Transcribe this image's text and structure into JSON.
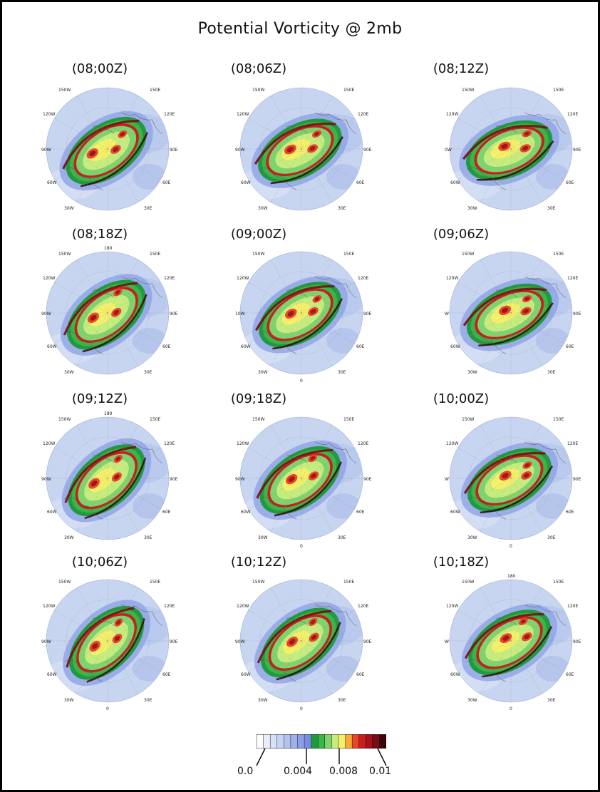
{
  "title": "Potential Vorticity @ 2mb",
  "panels": [
    {
      "label": "(08;00Z)",
      "lons": [
        "150W",
        "150E",
        "120W",
        "120E",
        "90W",
        "90E",
        "60W",
        "60E",
        "30W",
        "30E"
      ]
    },
    {
      "label": "(08;06Z)",
      "lons": [
        "150W",
        "150E",
        "120W",
        "120E",
        "90W",
        "90E",
        "60W",
        "60E",
        "30W",
        "30E"
      ]
    },
    {
      "label": "(08;12Z)",
      "lons": [
        "150W",
        "150E",
        "120W",
        "120E",
        "0W",
        "90E",
        "60W",
        "60E",
        "30W",
        "30E"
      ]
    },
    {
      "label": "(08;18Z)",
      "lons": [
        "150W",
        "150E",
        "120W",
        "120E",
        "90W",
        "90E",
        "60W",
        "60E",
        "30W",
        "30E"
      ],
      "top": "180"
    },
    {
      "label": "(09;00Z)",
      "lons": [
        "150W",
        "150E",
        "120W",
        "120E",
        "10W",
        "90E",
        "60W",
        "60E",
        "30W",
        "30E"
      ],
      "bottom": "0"
    },
    {
      "label": "(09;06Z)",
      "lons": [
        "150W",
        "150E",
        "120W",
        "120E",
        "W",
        "90E",
        "60W",
        "60E",
        "30W",
        "30E"
      ]
    },
    {
      "label": "(09;12Z)",
      "lons": [
        "150W",
        "150E",
        "120W",
        "120E",
        "90W",
        "90E",
        "60W",
        "60E",
        "30W",
        "30E"
      ],
      "top": "180"
    },
    {
      "label": "(09;18Z)",
      "lons": [
        "150W",
        "150E",
        "120W",
        "120E",
        "90W",
        "90E",
        "60W",
        "60E",
        "30W",
        "30E"
      ],
      "bottom": "0"
    },
    {
      "label": "(10;00Z)",
      "lons": [
        "150W",
        "150E",
        "120W",
        "120E",
        "W",
        "90E",
        "60W",
        "60E",
        "30W",
        "30E"
      ],
      "bottom": "0"
    },
    {
      "label": "(10;06Z)",
      "lons": [
        "150W",
        "150E",
        "120W",
        "120E",
        "90W",
        "90E",
        "60W",
        "60E",
        "30W",
        "30E"
      ],
      "bottom": "0"
    },
    {
      "label": "(10;12Z)",
      "lons": [
        "150W",
        "150E",
        "120W",
        "120E",
        "90W",
        "90E",
        "60W",
        "60E",
        "30W",
        "30E"
      ],
      "bottom": "0"
    },
    {
      "label": "(10;18Z)",
      "lons": [
        "150W",
        "150E",
        "120W",
        "120E",
        "W",
        "90E",
        "60W",
        "60E",
        "30W",
        "30E"
      ],
      "top": "180",
      "bottom": "0"
    }
  ],
  "colorbar": {
    "colors": [
      "#ffffff",
      "#e8eefa",
      "#d8e2f6",
      "#c6d4f2",
      "#b3c3ee",
      "#9fb1ea",
      "#8c9fe6",
      "#7a8de2",
      "#1f9b3d",
      "#3cb44a",
      "#7fd36f",
      "#c7ec7e",
      "#f5f06a",
      "#f7a936",
      "#e8452b",
      "#c81e1e",
      "#a5121a",
      "#7a0b12",
      "#3a0508"
    ],
    "ticks": [
      "0.0",
      "0.004",
      "0.008",
      "0.01"
    ]
  }
}
